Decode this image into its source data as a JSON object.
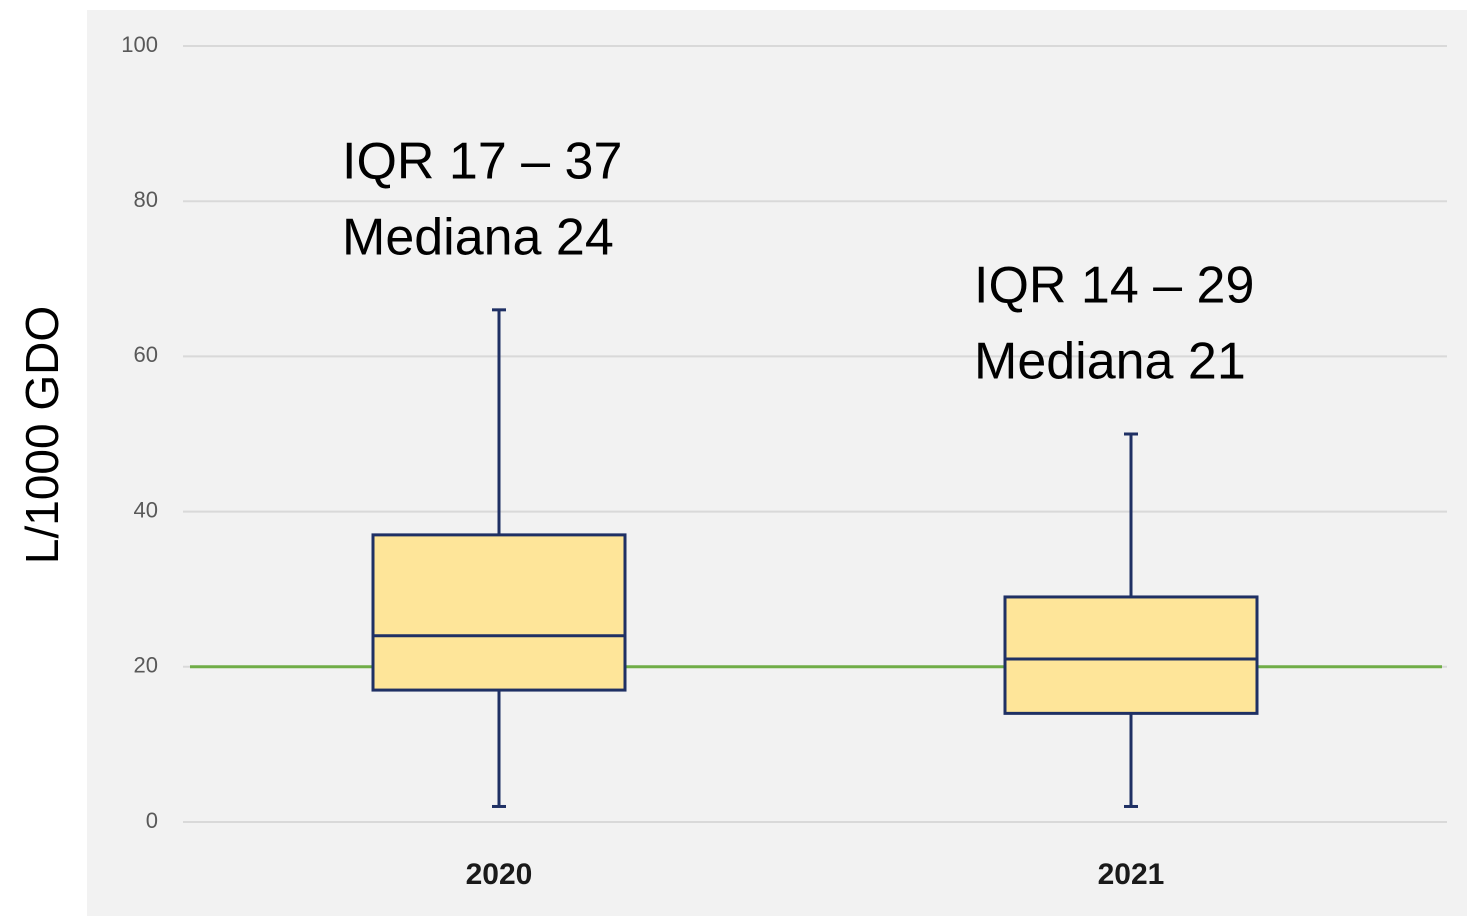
{
  "chart_data": {
    "type": "box",
    "y_label": "L/1000 GDO",
    "categories": [
      "2020",
      "2021"
    ],
    "boxes": [
      {
        "min": 2,
        "q1": 17,
        "median": 24,
        "q3": 37,
        "max": 66
      },
      {
        "min": 2,
        "q1": 14,
        "median": 21,
        "q3": 29,
        "max": 50
      }
    ],
    "annotations": [
      [
        "IQR 17 – 37",
        "Mediana 24"
      ],
      [
        "IQR 14 – 29",
        "Mediana 21"
      ]
    ],
    "color": "#fee599",
    "edge_color": "#1f3064",
    "reference_line": {
      "value": 20,
      "color": "#70ad47"
    },
    "ylim": [
      0,
      100
    ],
    "yticks": [
      0,
      20,
      40,
      60,
      80,
      100
    ],
    "grid": true
  }
}
